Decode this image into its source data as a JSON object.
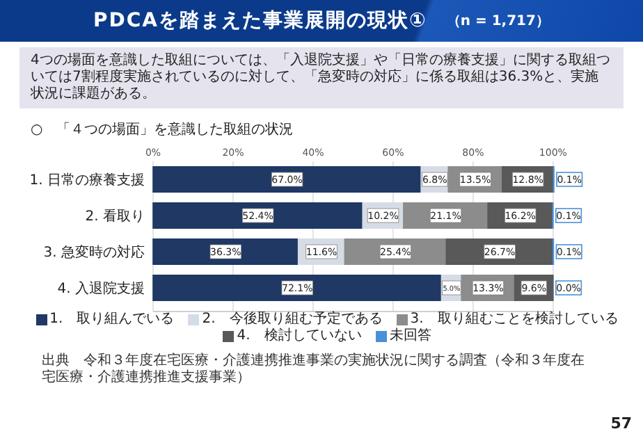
{
  "chart_data": {
    "type": "bar",
    "orientation": "horizontal",
    "stacked": true,
    "title": "PDCAを踏まえた事業展開の現状①",
    "subtitle": "（n = 1,717）",
    "categories": [
      "1. 日常の療養支援",
      "2. 看取り",
      "3. 急変時の対応",
      "4. 入退院支援"
    ],
    "series": [
      {
        "name": "1.　取り組んでいる",
        "color": "#1f3864",
        "values": [
          67.0,
          52.4,
          36.3,
          72.1
        ],
        "value_labels": [
          "67.0%",
          "52.4%",
          "36.3%",
          "72.1%"
        ]
      },
      {
        "name": "2.　今後取り組む予定である",
        "color": "#d6dce5",
        "values": [
          6.8,
          10.2,
          11.6,
          5.0
        ],
        "value_labels": [
          "6.8%",
          "10.2%",
          "11.6%",
          "5.0%"
        ]
      },
      {
        "name": "3.　取り組むことを検討している",
        "color": "#8c8c8c",
        "values": [
          13.5,
          21.1,
          25.4,
          13.3
        ],
        "value_labels": [
          "13.5%",
          "21.1%",
          "25.4%",
          "13.3%"
        ]
      },
      {
        "name": "4.　検討していない",
        "color": "#595959",
        "values": [
          12.8,
          16.2,
          26.7,
          9.6
        ],
        "value_labels": [
          "12.8%",
          "16.2%",
          "26.7%",
          "9.6%"
        ]
      },
      {
        "name": "未回答",
        "color": "#4a90d9",
        "values": [
          0.1,
          0.1,
          0.1,
          0.0
        ],
        "value_labels": [
          "0.1%",
          "0.1%",
          "0.1%",
          "0.0%"
        ]
      }
    ],
    "xlim": [
      0,
      100.2
    ],
    "xticks": [
      {
        "value": 0,
        "label": "0%"
      },
      {
        "value": 20,
        "label": "20%"
      },
      {
        "value": 40,
        "label": "40%"
      },
      {
        "value": 60,
        "label": "60%"
      },
      {
        "value": 80,
        "label": "80%"
      },
      {
        "value": 100,
        "label": "100%"
      }
    ],
    "grid": "x",
    "legend": "bottom",
    "annotations": [
      "4つの場面を意識した取組については、「入退院支援」や「日常の療養支援」に関する取組ついては7割程度実施されているのに対して、「急変時の対応」に係る取組は36.3%と、実施状況に課題がある。",
      "○　「４つの場面」を意識した取組の状況",
      "出典　令和３年度在宅医療・介護連携推進事業の実施状況に関する調査（令和３年度在宅医療・介護連携推進支援事業）",
      "57"
    ]
  }
}
